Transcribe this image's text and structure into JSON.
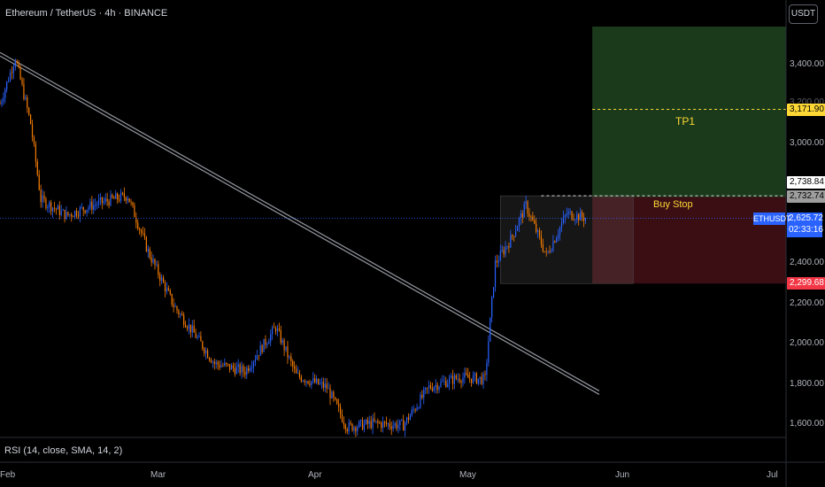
{
  "header": {
    "title": "Ethereum / TetherUS · 4h · BINANCE",
    "currency_button": "USDT"
  },
  "indicator": {
    "label": "RSI (14, close, SMA, 14, 2)"
  },
  "chart_data": {
    "type": "candlestick",
    "x_ticks": [
      "Feb",
      "Mar",
      "Apr",
      "May",
      "Jun",
      "Jul"
    ],
    "y_ticks": [
      "3,400.00",
      "3,200.00",
      "3,000.00",
      "2,400.00",
      "2,200.00",
      "2,000.00",
      "1,800.00",
      "1,600.00"
    ],
    "ylim": [
      1560,
      3700
    ],
    "approx_close_path": [
      {
        "date": "2024-02-01",
        "close": 3200
      },
      {
        "date": "2024-02-04",
        "close": 3430
      },
      {
        "date": "2024-02-07",
        "close": 3100
      },
      {
        "date": "2024-02-09",
        "close": 2720
      },
      {
        "date": "2024-02-14",
        "close": 2640
      },
      {
        "date": "2024-02-20",
        "close": 2700
      },
      {
        "date": "2024-02-26",
        "close": 2740
      },
      {
        "date": "2024-03-01",
        "close": 2460
      },
      {
        "date": "2024-03-06",
        "close": 2190
      },
      {
        "date": "2024-03-10",
        "close": 2050
      },
      {
        "date": "2024-03-14",
        "close": 1900
      },
      {
        "date": "2024-03-20",
        "close": 1860
      },
      {
        "date": "2024-03-26",
        "close": 2080
      },
      {
        "date": "2024-03-30",
        "close": 1840
      },
      {
        "date": "2024-04-05",
        "close": 1780
      },
      {
        "date": "2024-04-09",
        "close": 1580
      },
      {
        "date": "2024-04-14",
        "close": 1600
      },
      {
        "date": "2024-04-20",
        "close": 1590
      },
      {
        "date": "2024-04-25",
        "close": 1780
      },
      {
        "date": "2024-05-01",
        "close": 1830
      },
      {
        "date": "2024-05-06",
        "close": 1820
      },
      {
        "date": "2024-05-08",
        "close": 2400
      },
      {
        "date": "2024-05-11",
        "close": 2520
      },
      {
        "date": "2024-05-14",
        "close": 2690
      },
      {
        "date": "2024-05-18",
        "close": 2440
      },
      {
        "date": "2024-05-22",
        "close": 2650
      },
      {
        "date": "2024-05-26",
        "close": 2625.72
      }
    ],
    "trendline": {
      "from": {
        "date": "2024-02-01",
        "price": 3430
      },
      "to": {
        "date": "2024-05-28",
        "price": 1740
      }
    },
    "zones": {
      "consolidation_box": {
        "from": "2024-05-09",
        "to": "2024-05-27",
        "high": 2738.84,
        "low": 2299.68
      },
      "profit_zone": {
        "from": "2024-05-27",
        "to": "2024-07-04",
        "high": 3550,
        "low": 2732.74
      },
      "stop_zone": {
        "from": "2024-05-27",
        "to": "2024-07-04",
        "high": 2732.74,
        "low": 2299.68
      }
    },
    "levels": {
      "tp1": {
        "value": 3171.9,
        "label": "3,171.90",
        "text": "TP1"
      },
      "buy_stop": {
        "value": 2738.84,
        "label": "2,738.84",
        "text": "Buy Stop"
      },
      "entry": {
        "value": 2732.74,
        "label": "2,732.74"
      },
      "stop": {
        "value": 2299.68,
        "label": "2,299.68"
      },
      "last": {
        "value": 2625.72,
        "label": "2,625.72",
        "countdown": "02:33:16",
        "symbol": "ETHUSDT"
      }
    },
    "colors": {
      "up": "#2962ff",
      "down": "#f57c00",
      "profit_zone": "#1b3a1b",
      "stop_zone": "#3b0e14",
      "box": "#2a2a2a",
      "trendline": "#9598a1",
      "tp": "#fdd835",
      "last": "#2962ff",
      "stop_tag": "#f23645"
    }
  }
}
